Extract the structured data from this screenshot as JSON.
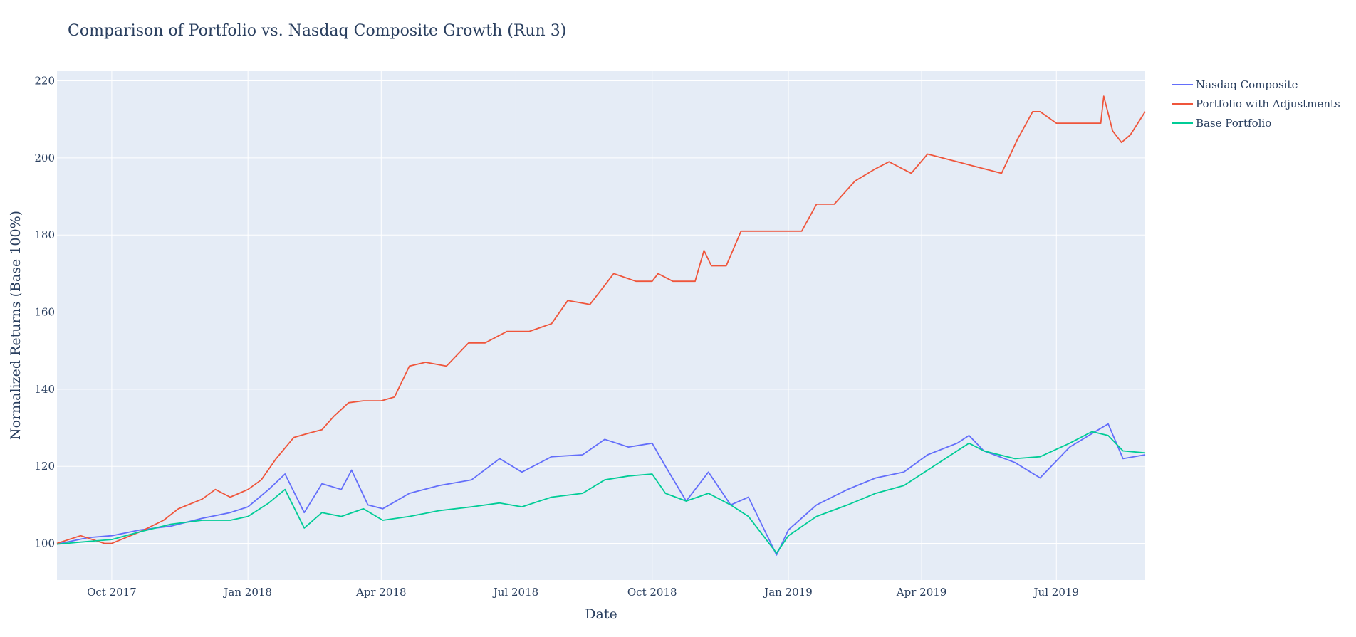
{
  "chart_data": {
    "type": "line",
    "title": "Comparison of Portfolio vs. Nasdaq Composite Growth (Run 3)",
    "xlabel": "Date",
    "ylabel": "Normalized Returns (Base 100%)",
    "xlim": [
      "2017-08-25",
      "2019-08-30"
    ],
    "ylim": [
      90.5,
      222.5
    ],
    "yticks": [
      100,
      120,
      140,
      160,
      180,
      200,
      220
    ],
    "xticks": [
      {
        "date": "2017-10-01",
        "label": "Oct 2017"
      },
      {
        "date": "2018-01-01",
        "label": "Jan 2018"
      },
      {
        "date": "2018-04-01",
        "label": "Apr 2018"
      },
      {
        "date": "2018-07-01",
        "label": "Jul 2018"
      },
      {
        "date": "2018-10-01",
        "label": "Oct 2018"
      },
      {
        "date": "2019-01-01",
        "label": "Jan 2019"
      },
      {
        "date": "2019-04-01",
        "label": "Apr 2019"
      },
      {
        "date": "2019-07-01",
        "label": "Jul 2019"
      }
    ],
    "grid": true,
    "legend_position": "top-right",
    "plot_background": "#e5ecf6",
    "series": [
      {
        "name": "Nasdaq Composite",
        "color": "#636efa",
        "x": [
          "2017-08-25",
          "2017-09-15",
          "2017-10-01",
          "2017-10-20",
          "2017-11-10",
          "2017-12-01",
          "2017-12-20",
          "2018-01-01",
          "2018-01-15",
          "2018-01-26",
          "2018-02-08",
          "2018-02-20",
          "2018-03-05",
          "2018-03-12",
          "2018-03-23",
          "2018-04-02",
          "2018-04-20",
          "2018-05-10",
          "2018-06-01",
          "2018-06-20",
          "2018-07-05",
          "2018-07-25",
          "2018-08-15",
          "2018-08-30",
          "2018-09-15",
          "2018-10-01",
          "2018-10-10",
          "2018-10-24",
          "2018-11-08",
          "2018-11-23",
          "2018-12-05",
          "2018-12-24",
          "2019-01-01",
          "2019-01-20",
          "2019-02-10",
          "2019-03-01",
          "2019-03-20",
          "2019-04-05",
          "2019-04-25",
          "2019-05-03",
          "2019-05-13",
          "2019-06-03",
          "2019-06-20",
          "2019-07-10",
          "2019-07-25",
          "2019-08-05",
          "2019-08-15",
          "2019-08-30"
        ],
        "y": [
          99.8,
          101.5,
          102.0,
          103.5,
          104.5,
          106.5,
          108.0,
          109.5,
          114.0,
          118.0,
          108.0,
          115.5,
          114.0,
          119.0,
          110.0,
          109.0,
          113.0,
          115.0,
          116.5,
          122.0,
          118.5,
          122.5,
          123.0,
          127.0,
          125.0,
          126.0,
          120.0,
          111.0,
          118.5,
          110.0,
          112.0,
          97.0,
          103.5,
          110.0,
          114.0,
          117.0,
          118.5,
          123.0,
          126.0,
          128.0,
          124.0,
          121.0,
          117.0,
          125.0,
          128.5,
          131.0,
          122.0,
          123.0
        ]
      },
      {
        "name": "Portfolio with Adjustments",
        "color": "#ef553b",
        "x": [
          "2017-08-25",
          "2017-09-10",
          "2017-09-26",
          "2017-10-01",
          "2017-10-20",
          "2017-11-05",
          "2017-11-15",
          "2017-12-01",
          "2017-12-10",
          "2017-12-20",
          "2018-01-01",
          "2018-01-10",
          "2018-01-20",
          "2018-02-01",
          "2018-02-10",
          "2018-02-20",
          "2018-02-28",
          "2018-03-10",
          "2018-03-20",
          "2018-04-01",
          "2018-04-10",
          "2018-04-20",
          "2018-05-01",
          "2018-05-15",
          "2018-05-30",
          "2018-06-10",
          "2018-06-25",
          "2018-07-10",
          "2018-07-25",
          "2018-08-05",
          "2018-08-20",
          "2018-09-05",
          "2018-09-20",
          "2018-10-01",
          "2018-10-05",
          "2018-10-15",
          "2018-10-30",
          "2018-11-05",
          "2018-11-10",
          "2018-11-20",
          "2018-11-30",
          "2018-12-08",
          "2018-12-15",
          "2018-12-25",
          "2019-01-01",
          "2019-01-10",
          "2019-01-20",
          "2019-02-01",
          "2019-02-15",
          "2019-02-28",
          "2019-03-10",
          "2019-03-25",
          "2019-04-05",
          "2019-04-15",
          "2019-04-25",
          "2019-05-05",
          "2019-05-15",
          "2019-05-25",
          "2019-06-05",
          "2019-06-15",
          "2019-06-20",
          "2019-07-01",
          "2019-07-15",
          "2019-07-31",
          "2019-08-02",
          "2019-08-08",
          "2019-08-14",
          "2019-08-20",
          "2019-08-30"
        ],
        "y": [
          100.0,
          102.0,
          100.0,
          100.0,
          103.0,
          106.0,
          109.0,
          111.5,
          114.0,
          112.0,
          114.0,
          116.5,
          122.0,
          127.5,
          128.5,
          129.5,
          133.0,
          136.5,
          137.0,
          137.0,
          138.0,
          146.0,
          147.0,
          146.0,
          152.0,
          152.0,
          155.0,
          155.0,
          157.0,
          163.0,
          162.0,
          170.0,
          168.0,
          168.0,
          170.0,
          168.0,
          168.0,
          176.0,
          172.0,
          172.0,
          181.0,
          181.0,
          181.0,
          181.0,
          181.0,
          181.0,
          188.0,
          188.0,
          194.0,
          197.0,
          199.0,
          196.0,
          201.0,
          200.0,
          199.0,
          198.0,
          197.0,
          196.0,
          205.0,
          212.0,
          212.0,
          209.0,
          209.0,
          209.0,
          216.0,
          207.0,
          204.0,
          206.0,
          212.0
        ]
      },
      {
        "name": "Base Portfolio",
        "color": "#00cc96",
        "x": [
          "2017-08-25",
          "2017-09-15",
          "2017-10-01",
          "2017-10-20",
          "2017-11-10",
          "2017-12-01",
          "2017-12-20",
          "2018-01-01",
          "2018-01-15",
          "2018-01-26",
          "2018-02-08",
          "2018-02-20",
          "2018-03-05",
          "2018-03-20",
          "2018-04-02",
          "2018-04-20",
          "2018-05-10",
          "2018-06-01",
          "2018-06-20",
          "2018-07-05",
          "2018-07-25",
          "2018-08-15",
          "2018-08-30",
          "2018-09-15",
          "2018-10-01",
          "2018-10-10",
          "2018-10-24",
          "2018-11-08",
          "2018-11-23",
          "2018-12-05",
          "2018-12-24",
          "2019-01-01",
          "2019-01-20",
          "2019-02-10",
          "2019-03-01",
          "2019-03-20",
          "2019-04-05",
          "2019-04-25",
          "2019-05-03",
          "2019-05-13",
          "2019-06-03",
          "2019-06-20",
          "2019-07-10",
          "2019-07-25",
          "2019-08-05",
          "2019-08-15",
          "2019-08-30"
        ],
        "y": [
          99.8,
          100.5,
          101.0,
          103.0,
          105.0,
          106.0,
          106.0,
          107.0,
          110.5,
          114.0,
          104.0,
          108.0,
          107.0,
          109.0,
          106.0,
          107.0,
          108.5,
          109.5,
          110.5,
          109.5,
          112.0,
          113.0,
          116.5,
          117.5,
          118.0,
          113.0,
          111.0,
          113.0,
          110.0,
          107.0,
          97.5,
          102.0,
          107.0,
          110.0,
          113.0,
          115.0,
          119.0,
          124.0,
          126.0,
          124.0,
          122.0,
          122.5,
          126.0,
          129.0,
          128.0,
          124.0,
          123.5
        ]
      }
    ]
  }
}
